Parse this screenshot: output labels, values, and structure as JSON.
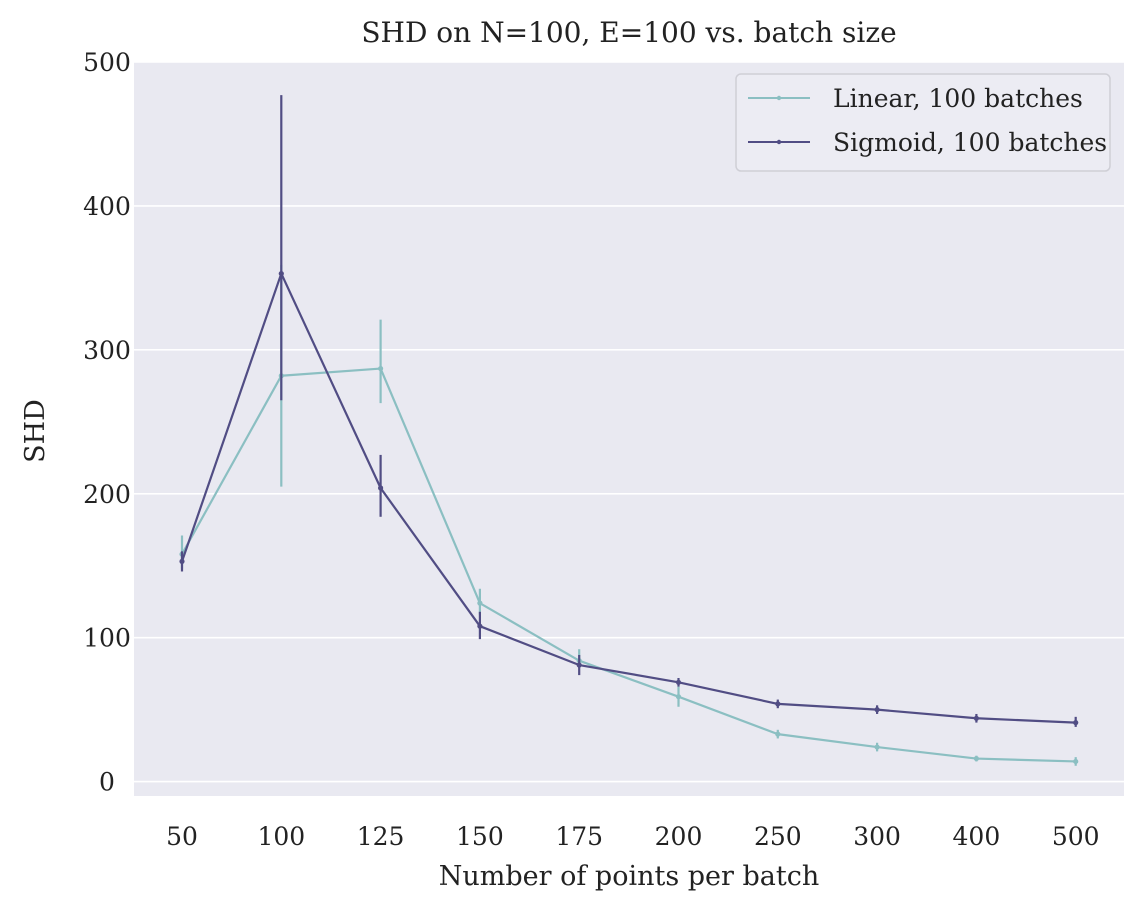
{
  "chart_data": {
    "type": "line",
    "title": "SHD on N=100, E=100 vs. batch size",
    "xlabel": "Number of points per batch",
    "ylabel": "SHD",
    "categories": [
      "50",
      "100",
      "125",
      "150",
      "175",
      "200",
      "250",
      "300",
      "400",
      "500"
    ],
    "ylim": [
      -10,
      500
    ],
    "yticks": [
      0,
      100,
      200,
      300,
      400,
      500
    ],
    "grid": true,
    "legend_position": "top-right",
    "series": [
      {
        "name": "Linear, 100 batches",
        "color": "#8bbfc2",
        "values": [
          158,
          282,
          287,
          124,
          84,
          59,
          33,
          24,
          16,
          14
        ],
        "err_low": [
          148,
          205,
          263,
          116,
          79,
          52,
          30,
          21,
          14,
          11
        ],
        "err_high": [
          171,
          359,
          321,
          134,
          92,
          66,
          36,
          27,
          18,
          17
        ]
      },
      {
        "name": "Sigmoid, 100 batches",
        "color": "#514d84",
        "values": [
          153,
          353,
          204,
          108,
          81,
          69,
          54,
          50,
          44,
          41
        ],
        "err_low": [
          146,
          265,
          184,
          99,
          74,
          66,
          51,
          47,
          41,
          38
        ],
        "err_high": [
          160,
          477,
          227,
          118,
          88,
          72,
          57,
          53,
          47,
          45
        ]
      }
    ]
  }
}
